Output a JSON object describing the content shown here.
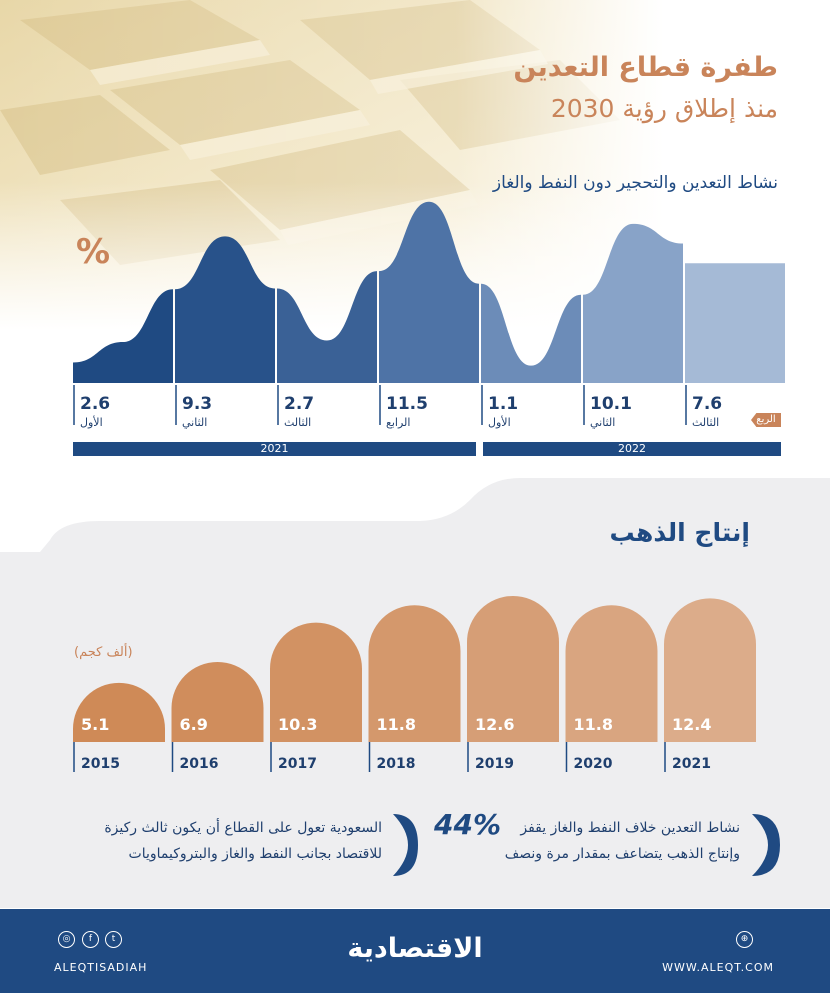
{
  "header": {
    "title": "طفرة قطاع التعدين",
    "subtitle": "منذ إطلاق رؤية 2030"
  },
  "activity": {
    "title": "نشاط التعدين والتحجير دون النفط والغاز",
    "unit": "%",
    "quarter_tag": "الربع",
    "years": [
      "2021",
      "2022"
    ]
  },
  "chart_data": [
    {
      "type": "area",
      "title": "نشاط التعدين والتحجير دون النفط والغاز",
      "ylabel": "%",
      "categories": [
        "الأول",
        "الثاني",
        "الثالث",
        "الرابع",
        "الأول",
        "الثاني",
        "الثالث"
      ],
      "years": [
        "2021",
        "2021",
        "2021",
        "2021",
        "2022",
        "2022",
        "2022"
      ],
      "values": [
        2.6,
        9.3,
        2.7,
        11.5,
        1.1,
        10.1,
        7.6
      ],
      "labels": [
        "2.6",
        "9.3",
        "2.7",
        "11.5",
        "1.1",
        "10.1",
        "7.6"
      ],
      "colors": [
        "#1f4a82",
        "#28528a",
        "#3a6196",
        "#4e73a6",
        "#6c8cb8",
        "#88a3c8",
        "#a5bad6"
      ],
      "ylim": [
        0,
        12.5
      ]
    },
    {
      "type": "bar",
      "title": "إنتاج الذهب",
      "ylabel": "(ألف كجم)",
      "categories": [
        "2015",
        "2016",
        "2017",
        "2018",
        "2019",
        "2020",
        "2021"
      ],
      "values": [
        5.1,
        6.9,
        10.3,
        11.8,
        12.6,
        11.8,
        12.4
      ],
      "labels": [
        "5.1",
        "6.9",
        "10.3",
        "11.8",
        "12.6",
        "11.8",
        "12.4"
      ],
      "colors": [
        "#cf8a57",
        "#d08d5c",
        "#d29263",
        "#d4986c",
        "#d69e76",
        "#d9a580",
        "#dcac8a"
      ],
      "ylim": [
        0,
        12.6
      ]
    }
  ],
  "gold": {
    "title": "إنتاج الذهب",
    "unit": "(ألف كجم)"
  },
  "notes": {
    "left_line1": "السعودية تعول على القطاع أن يكون ثالث ركيزة",
    "left_line2": "للاقتصاد بجانب النفط والغاز والبتروكيماويات",
    "right_big": "44%",
    "right_line1": "نشاط التعدين خلاف النفط والغاز يقفز",
    "right_line2": "وإنتاج الذهب يتضاعف بمقدار مرة ونصف"
  },
  "footer": {
    "brand": "الاقتصادية",
    "handle": "ALEQTISADIAH",
    "website": "WWW.ALEQT.COM"
  }
}
